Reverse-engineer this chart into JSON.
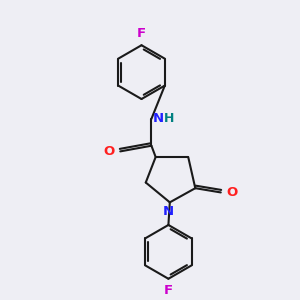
{
  "bg_color": "#eeeef4",
  "bond_color": "#1a1a1a",
  "N_color": "#2020ff",
  "O_color": "#ff2020",
  "F_color": "#cc00cc",
  "H_color": "#008080",
  "line_width": 1.5,
  "font_size": 9.5,
  "fig_size": [
    3.0,
    3.0
  ],
  "dpi": 100,
  "xlim": [
    0,
    10
  ],
  "ylim": [
    0,
    10
  ]
}
